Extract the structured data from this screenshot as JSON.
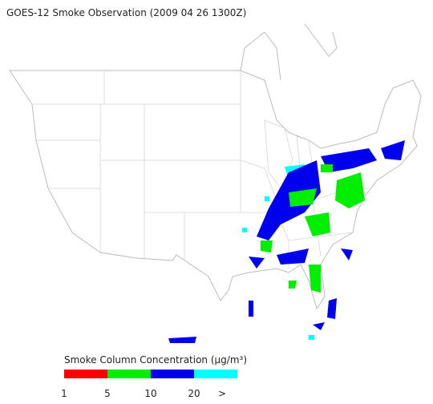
{
  "title": "GOES-12 Smoke Observation (2009 04 26  1300Z)",
  "legend": {
    "title": "Smoke Column Concentration (μg/m³)",
    "colors": [
      "#ff0000",
      "#00ee00",
      "#0000ee",
      "#00ffff"
    ],
    "labels": [
      "1",
      "5",
      "10",
      "20",
      ">"
    ]
  }
}
